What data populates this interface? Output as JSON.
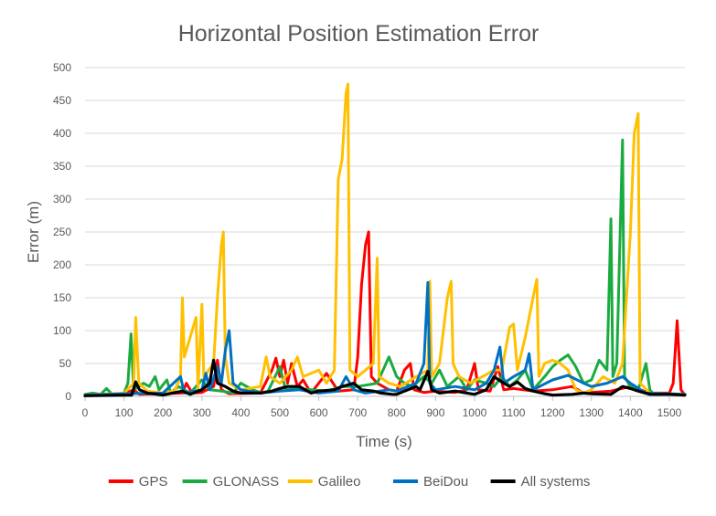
{
  "chart_data": {
    "type": "line",
    "title": "Horizontal Position Estimation Error",
    "xlabel": "Time (s)",
    "ylabel": "Error (m)",
    "xlim": [
      0,
      1540
    ],
    "ylim": [
      0,
      500
    ],
    "x_ticks": [
      0,
      100,
      200,
      300,
      400,
      500,
      600,
      700,
      800,
      900,
      1000,
      1100,
      1200,
      1300,
      1400,
      1500
    ],
    "y_ticks": [
      0,
      50,
      100,
      150,
      200,
      250,
      300,
      350,
      400,
      450,
      500
    ],
    "grid": "horizontal",
    "legend_position": "bottom",
    "series": [
      {
        "name": "GPS",
        "color": "#ff0000",
        "points": [
          [
            0,
            2
          ],
          [
            100,
            4
          ],
          [
            125,
            10
          ],
          [
            140,
            3
          ],
          [
            250,
            5
          ],
          [
            260,
            20
          ],
          [
            275,
            5
          ],
          [
            300,
            6
          ],
          [
            330,
            15
          ],
          [
            340,
            55
          ],
          [
            350,
            10
          ],
          [
            370,
            4
          ],
          [
            450,
            5
          ],
          [
            480,
            40
          ],
          [
            490,
            58
          ],
          [
            500,
            30
          ],
          [
            510,
            55
          ],
          [
            520,
            20
          ],
          [
            530,
            50
          ],
          [
            545,
            15
          ],
          [
            560,
            25
          ],
          [
            580,
            5
          ],
          [
            600,
            20
          ],
          [
            620,
            35
          ],
          [
            650,
            8
          ],
          [
            690,
            10
          ],
          [
            700,
            60
          ],
          [
            710,
            170
          ],
          [
            720,
            230
          ],
          [
            728,
            250
          ],
          [
            735,
            30
          ],
          [
            750,
            20
          ],
          [
            780,
            10
          ],
          [
            800,
            8
          ],
          [
            820,
            40
          ],
          [
            835,
            50
          ],
          [
            845,
            10
          ],
          [
            870,
            6
          ],
          [
            900,
            8
          ],
          [
            950,
            6
          ],
          [
            980,
            10
          ],
          [
            1000,
            50
          ],
          [
            1010,
            10
          ],
          [
            1040,
            8
          ],
          [
            1060,
            45
          ],
          [
            1075,
            10
          ],
          [
            1100,
            12
          ],
          [
            1150,
            8
          ],
          [
            1200,
            10
          ],
          [
            1250,
            15
          ],
          [
            1280,
            5
          ],
          [
            1300,
            6
          ],
          [
            1350,
            8
          ],
          [
            1400,
            15
          ],
          [
            1450,
            5
          ],
          [
            1500,
            5
          ],
          [
            1510,
            20
          ],
          [
            1520,
            115
          ],
          [
            1530,
            10
          ],
          [
            1540,
            2
          ]
        ]
      },
      {
        "name": "GLONASS",
        "color": "#1aab40",
        "points": [
          [
            0,
            3
          ],
          [
            20,
            5
          ],
          [
            40,
            3
          ],
          [
            55,
            12
          ],
          [
            70,
            3
          ],
          [
            100,
            5
          ],
          [
            110,
            20
          ],
          [
            118,
            95
          ],
          [
            125,
            10
          ],
          [
            150,
            20
          ],
          [
            165,
            15
          ],
          [
            180,
            30
          ],
          [
            190,
            10
          ],
          [
            210,
            25
          ],
          [
            220,
            5
          ],
          [
            240,
            15
          ],
          [
            270,
            5
          ],
          [
            300,
            25
          ],
          [
            320,
            10
          ],
          [
            350,
            8
          ],
          [
            380,
            5
          ],
          [
            400,
            20
          ],
          [
            430,
            10
          ],
          [
            455,
            5
          ],
          [
            470,
            8
          ],
          [
            500,
            45
          ],
          [
            515,
            10
          ],
          [
            540,
            12
          ],
          [
            580,
            10
          ],
          [
            620,
            8
          ],
          [
            660,
            15
          ],
          [
            700,
            15
          ],
          [
            750,
            20
          ],
          [
            780,
            60
          ],
          [
            800,
            30
          ],
          [
            820,
            20
          ],
          [
            840,
            15
          ],
          [
            870,
            30
          ],
          [
            890,
            20
          ],
          [
            910,
            40
          ],
          [
            930,
            15
          ],
          [
            960,
            30
          ],
          [
            980,
            10
          ],
          [
            1000,
            25
          ],
          [
            1030,
            20
          ],
          [
            1050,
            15
          ],
          [
            1070,
            30
          ],
          [
            1090,
            15
          ],
          [
            1110,
            25
          ],
          [
            1130,
            40
          ],
          [
            1150,
            10
          ],
          [
            1180,
            30
          ],
          [
            1200,
            45
          ],
          [
            1220,
            55
          ],
          [
            1240,
            63
          ],
          [
            1260,
            45
          ],
          [
            1280,
            20
          ],
          [
            1300,
            25
          ],
          [
            1320,
            55
          ],
          [
            1340,
            40
          ],
          [
            1350,
            270
          ],
          [
            1355,
            30
          ],
          [
            1365,
            50
          ],
          [
            1380,
            390
          ],
          [
            1385,
            30
          ],
          [
            1400,
            15
          ],
          [
            1420,
            10
          ],
          [
            1440,
            50
          ],
          [
            1450,
            10
          ],
          [
            1460,
            3
          ],
          [
            1540,
            3
          ]
        ]
      },
      {
        "name": "Galileo",
        "color": "#ffc000",
        "points": [
          [
            0,
            2
          ],
          [
            100,
            5
          ],
          [
            125,
            20
          ],
          [
            130,
            120
          ],
          [
            138,
            20
          ],
          [
            160,
            8
          ],
          [
            200,
            5
          ],
          [
            230,
            8
          ],
          [
            245,
            30
          ],
          [
            250,
            150
          ],
          [
            255,
            60
          ],
          [
            275,
            100
          ],
          [
            285,
            120
          ],
          [
            290,
            10
          ],
          [
            300,
            140
          ],
          [
            305,
            30
          ],
          [
            330,
            50
          ],
          [
            340,
            150
          ],
          [
            350,
            230
          ],
          [
            355,
            250
          ],
          [
            360,
            60
          ],
          [
            370,
            20
          ],
          [
            400,
            10
          ],
          [
            450,
            15
          ],
          [
            465,
            60
          ],
          [
            475,
            30
          ],
          [
            500,
            20
          ],
          [
            530,
            40
          ],
          [
            545,
            60
          ],
          [
            560,
            30
          ],
          [
            600,
            40
          ],
          [
            620,
            20
          ],
          [
            640,
            40
          ],
          [
            650,
            330
          ],
          [
            660,
            360
          ],
          [
            670,
            460
          ],
          [
            675,
            475
          ],
          [
            680,
            40
          ],
          [
            700,
            30
          ],
          [
            720,
            40
          ],
          [
            740,
            50
          ],
          [
            750,
            210
          ],
          [
            755,
            30
          ],
          [
            780,
            20
          ],
          [
            810,
            15
          ],
          [
            850,
            30
          ],
          [
            880,
            40
          ],
          [
            885,
            175
          ],
          [
            890,
            30
          ],
          [
            910,
            50
          ],
          [
            920,
            100
          ],
          [
            930,
            150
          ],
          [
            940,
            175
          ],
          [
            945,
            50
          ],
          [
            960,
            30
          ],
          [
            990,
            20
          ],
          [
            1020,
            30
          ],
          [
            1050,
            40
          ],
          [
            1070,
            40
          ],
          [
            1090,
            105
          ],
          [
            1100,
            110
          ],
          [
            1110,
            40
          ],
          [
            1130,
            90
          ],
          [
            1150,
            150
          ],
          [
            1160,
            178
          ],
          [
            1165,
            30
          ],
          [
            1180,
            50
          ],
          [
            1200,
            55
          ],
          [
            1220,
            50
          ],
          [
            1240,
            40
          ],
          [
            1260,
            10
          ],
          [
            1280,
            5
          ],
          [
            1300,
            10
          ],
          [
            1330,
            30
          ],
          [
            1360,
            20
          ],
          [
            1380,
            50
          ],
          [
            1390,
            150
          ],
          [
            1400,
            250
          ],
          [
            1410,
            400
          ],
          [
            1420,
            430
          ],
          [
            1425,
            20
          ],
          [
            1450,
            5
          ],
          [
            1540,
            3
          ]
        ]
      },
      {
        "name": "BeiDou",
        "color": "#0070c0",
        "points": [
          [
            0,
            2
          ],
          [
            100,
            4
          ],
          [
            200,
            5
          ],
          [
            245,
            30
          ],
          [
            255,
            5
          ],
          [
            300,
            10
          ],
          [
            310,
            35
          ],
          [
            320,
            10
          ],
          [
            340,
            45
          ],
          [
            350,
            20
          ],
          [
            360,
            70
          ],
          [
            370,
            100
          ],
          [
            380,
            20
          ],
          [
            400,
            10
          ],
          [
            450,
            5
          ],
          [
            500,
            8
          ],
          [
            550,
            10
          ],
          [
            600,
            5
          ],
          [
            650,
            8
          ],
          [
            670,
            30
          ],
          [
            690,
            10
          ],
          [
            720,
            5
          ],
          [
            780,
            10
          ],
          [
            800,
            8
          ],
          [
            850,
            20
          ],
          [
            870,
            50
          ],
          [
            880,
            173
          ],
          [
            885,
            20
          ],
          [
            900,
            10
          ],
          [
            950,
            15
          ],
          [
            1000,
            10
          ],
          [
            1030,
            20
          ],
          [
            1050,
            40
          ],
          [
            1065,
            75
          ],
          [
            1075,
            20
          ],
          [
            1100,
            30
          ],
          [
            1130,
            40
          ],
          [
            1140,
            65
          ],
          [
            1150,
            10
          ],
          [
            1200,
            25
          ],
          [
            1240,
            32
          ],
          [
            1280,
            20
          ],
          [
            1300,
            15
          ],
          [
            1340,
            20
          ],
          [
            1380,
            30
          ],
          [
            1400,
            20
          ],
          [
            1440,
            5
          ],
          [
            1540,
            3
          ]
        ]
      },
      {
        "name": "All systems",
        "color": "#000000",
        "points": [
          [
            0,
            1
          ],
          [
            120,
            2
          ],
          [
            130,
            22
          ],
          [
            140,
            10
          ],
          [
            160,
            5
          ],
          [
            200,
            2
          ],
          [
            250,
            8
          ],
          [
            270,
            3
          ],
          [
            300,
            10
          ],
          [
            320,
            20
          ],
          [
            330,
            55
          ],
          [
            340,
            20
          ],
          [
            360,
            15
          ],
          [
            380,
            8
          ],
          [
            400,
            5
          ],
          [
            450,
            5
          ],
          [
            480,
            8
          ],
          [
            500,
            12
          ],
          [
            520,
            15
          ],
          [
            550,
            15
          ],
          [
            580,
            5
          ],
          [
            600,
            8
          ],
          [
            640,
            10
          ],
          [
            660,
            15
          ],
          [
            690,
            20
          ],
          [
            710,
            10
          ],
          [
            740,
            8
          ],
          [
            760,
            5
          ],
          [
            790,
            3
          ],
          [
            800,
            3
          ],
          [
            820,
            8
          ],
          [
            850,
            15
          ],
          [
            860,
            10
          ],
          [
            880,
            38
          ],
          [
            890,
            10
          ],
          [
            910,
            5
          ],
          [
            950,
            8
          ],
          [
            1000,
            3
          ],
          [
            1030,
            10
          ],
          [
            1050,
            30
          ],
          [
            1070,
            22
          ],
          [
            1090,
            15
          ],
          [
            1110,
            22
          ],
          [
            1130,
            12
          ],
          [
            1150,
            8
          ],
          [
            1180,
            4
          ],
          [
            1200,
            2
          ],
          [
            1250,
            3
          ],
          [
            1280,
            5
          ],
          [
            1300,
            4
          ],
          [
            1350,
            3
          ],
          [
            1380,
            15
          ],
          [
            1400,
            12
          ],
          [
            1420,
            8
          ],
          [
            1450,
            3
          ],
          [
            1500,
            3
          ],
          [
            1540,
            2
          ]
        ]
      }
    ]
  }
}
